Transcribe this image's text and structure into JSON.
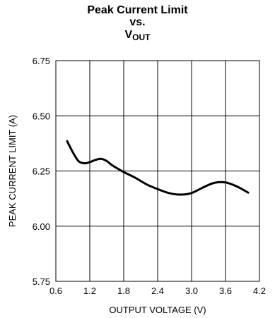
{
  "chart_data": {
    "type": "line",
    "title_line1": "Peak Current Limit",
    "title_line2": "vs.",
    "title_line3_main": "V",
    "title_line3_sub": "OUT",
    "xlabel": "OUTPUT VOLTAGE (V)",
    "ylabel": "PEAK CURRENT LIMIT (A)",
    "xlim": [
      0.6,
      4.2
    ],
    "ylim": [
      5.75,
      6.75
    ],
    "x_ticks": [
      "0.6",
      "1.2",
      "1.8",
      "2.4",
      "3.0",
      "3.6",
      "4.2"
    ],
    "y_ticks": [
      "6.75",
      "6.50",
      "6.25",
      "6.00",
      "5.75"
    ],
    "grid": true,
    "series": [
      {
        "color": "#000000",
        "x": [
          0.8,
          0.9,
          1.0,
          1.1,
          1.2,
          1.3,
          1.4,
          1.5,
          1.6,
          1.7,
          1.8,
          2.0,
          2.2,
          2.4,
          2.6,
          2.8,
          3.0,
          3.2,
          3.4,
          3.6,
          3.8,
          4.0
        ],
        "y": [
          6.385,
          6.335,
          6.295,
          6.285,
          6.29,
          6.3,
          6.305,
          6.295,
          6.275,
          6.26,
          6.245,
          6.22,
          6.19,
          6.168,
          6.15,
          6.143,
          6.15,
          6.175,
          6.196,
          6.198,
          6.18,
          6.152
        ]
      }
    ]
  }
}
